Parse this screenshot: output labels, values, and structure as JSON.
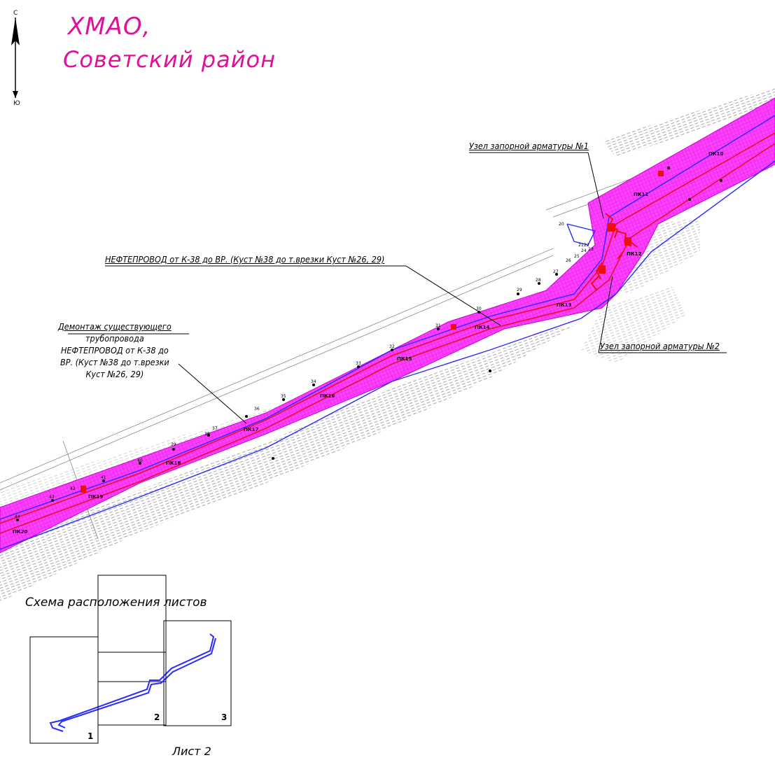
{
  "title": {
    "line1": "ХМАО,",
    "line2": "Советский район"
  },
  "compass": {
    "north": "С",
    "south": "Ю"
  },
  "callouts": {
    "valve_node_1": "Узел запорной арматуры №1",
    "pipeline": "НЕФТЕПРОВОД от К-38 до ВР. (Куст №38 до т.врезки Куст №26, 29)",
    "dismantling": [
      "Демонтаж существующего",
      "трубопровода",
      "НЕФТЕПРОВОД от К-38 до",
      "ВР. (Куст №38 до т.врезки",
      "Куст №26, 29)"
    ],
    "valve_node_2": "Узел запорной арматуры №2"
  },
  "pickets": [
    "ПК10",
    "ПК11",
    "ПК12",
    "ПК13",
    "ПК14",
    "ПК15",
    "ПК16",
    "ПК17",
    "ПК18",
    "ПК19",
    "ПК20"
  ],
  "point_numbers": [
    "20",
    "21",
    "22",
    "23",
    "24",
    "25",
    "26",
    "27",
    "28",
    "29",
    "30",
    "31",
    "32",
    "33",
    "34",
    "35",
    "36",
    "37",
    "38",
    "39",
    "40",
    "41",
    "42",
    "43",
    "44"
  ],
  "schema": {
    "title": "Схема расположения листов",
    "sheets": [
      "1",
      "2",
      "3"
    ],
    "current_sheet": "Лист 2"
  },
  "colors": {
    "corridor": "#ff33ff",
    "pipeline_red": "#e8102a",
    "pipeline_blue": "#2a2aff",
    "title": "#e0109a",
    "hatch": "#b0b0b0"
  }
}
